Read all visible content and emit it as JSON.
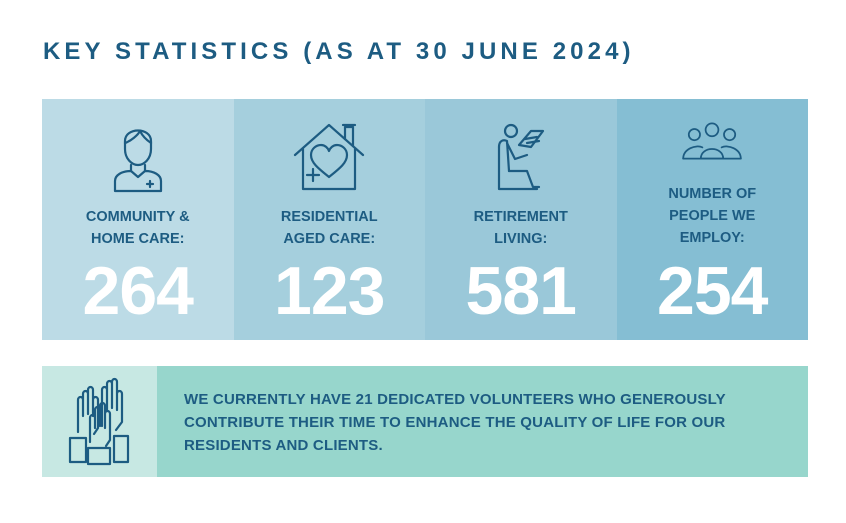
{
  "title": "KEY STATISTICS (AS AT 30 JUNE 2024)",
  "stats": [
    {
      "label": "COMMUNITY &\nHOME CARE:",
      "value": "264",
      "icon": "carer-icon",
      "color": "#bcdbe6"
    },
    {
      "label": "RESIDENTIAL\nAGED CARE:",
      "value": "123",
      "icon": "house-heart-icon",
      "color": "#a5cfdd"
    },
    {
      "label": "RETIREMENT\nLIVING:",
      "value": "581",
      "icon": "reading-chair-icon",
      "color": "#9ac8d9"
    },
    {
      "label": "NUMBER OF\nPEOPLE WE\nEMPLOY:",
      "value": "254",
      "icon": "people-group-icon",
      "color": "#85bed3"
    }
  ],
  "volunteers": {
    "text": "WE CURRENTLY HAVE 21 DEDICATED VOLUNTEERS WHO GENEROUSLY CONTRIBUTE THEIR TIME TO ENHANCE THE QUALITY OF LIFE FOR OUR RESIDENTS AND CLIENTS.",
    "icon": "raised-hands-icon"
  }
}
